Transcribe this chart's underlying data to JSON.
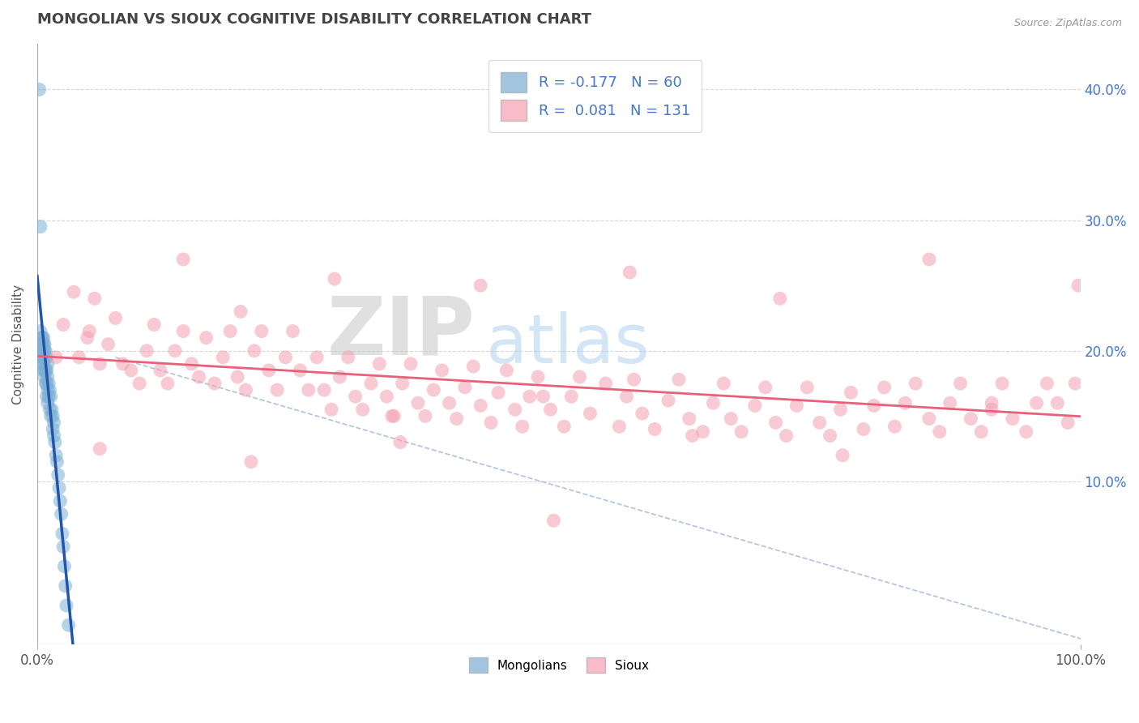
{
  "title": "MONGOLIAN VS SIOUX COGNITIVE DISABILITY CORRELATION CHART",
  "ylabel": "Cognitive Disability",
  "source": "Source: ZipAtlas.com",
  "xlim": [
    0.0,
    1.0
  ],
  "ylim": [
    -0.025,
    0.435
  ],
  "mongolian_color": "#7BAFD4",
  "sioux_color": "#F4A0B0",
  "mongolian_line_color": "#2255AA",
  "sioux_line_color": "#E8607A",
  "dash_line_color": "#AABBDD",
  "legend_R_mongolian": "-0.177",
  "legend_N_mongolian": "60",
  "legend_R_sioux": "0.081",
  "legend_N_sioux": "131",
  "background_color": "#FFFFFF",
  "grid_color": "#CCCCCC",
  "right_axis_color": "#4477CC",
  "mongolian_x": [
    0.002,
    0.003,
    0.003,
    0.003,
    0.004,
    0.004,
    0.004,
    0.004,
    0.005,
    0.005,
    0.005,
    0.005,
    0.005,
    0.006,
    0.006,
    0.006,
    0.006,
    0.006,
    0.006,
    0.007,
    0.007,
    0.007,
    0.007,
    0.007,
    0.008,
    0.008,
    0.008,
    0.008,
    0.009,
    0.009,
    0.009,
    0.009,
    0.01,
    0.01,
    0.01,
    0.01,
    0.011,
    0.011,
    0.012,
    0.012,
    0.013,
    0.013,
    0.014,
    0.015,
    0.015,
    0.016,
    0.016,
    0.017,
    0.018,
    0.019,
    0.02,
    0.021,
    0.022,
    0.023,
    0.024,
    0.025,
    0.026,
    0.027,
    0.028,
    0.03
  ],
  "mongolian_y": [
    0.4,
    0.295,
    0.215,
    0.195,
    0.21,
    0.205,
    0.2,
    0.195,
    0.21,
    0.205,
    0.2,
    0.195,
    0.19,
    0.21,
    0.205,
    0.2,
    0.195,
    0.19,
    0.185,
    0.205,
    0.2,
    0.195,
    0.185,
    0.18,
    0.2,
    0.195,
    0.185,
    0.175,
    0.195,
    0.185,
    0.175,
    0.165,
    0.19,
    0.18,
    0.17,
    0.16,
    0.175,
    0.165,
    0.17,
    0.155,
    0.165,
    0.15,
    0.155,
    0.15,
    0.14,
    0.145,
    0.135,
    0.13,
    0.12,
    0.115,
    0.105,
    0.095,
    0.085,
    0.075,
    0.06,
    0.05,
    0.035,
    0.02,
    0.005,
    -0.01
  ],
  "sioux_x": [
    0.018,
    0.025,
    0.035,
    0.04,
    0.048,
    0.055,
    0.06,
    0.068,
    0.075,
    0.082,
    0.09,
    0.098,
    0.105,
    0.112,
    0.118,
    0.125,
    0.132,
    0.14,
    0.148,
    0.155,
    0.162,
    0.17,
    0.178,
    0.185,
    0.192,
    0.2,
    0.208,
    0.215,
    0.222,
    0.23,
    0.238,
    0.245,
    0.252,
    0.26,
    0.268,
    0.275,
    0.282,
    0.29,
    0.298,
    0.305,
    0.312,
    0.32,
    0.328,
    0.335,
    0.342,
    0.35,
    0.358,
    0.365,
    0.372,
    0.38,
    0.388,
    0.395,
    0.402,
    0.41,
    0.418,
    0.425,
    0.435,
    0.442,
    0.45,
    0.458,
    0.465,
    0.472,
    0.48,
    0.492,
    0.505,
    0.512,
    0.52,
    0.53,
    0.545,
    0.558,
    0.565,
    0.572,
    0.58,
    0.592,
    0.605,
    0.615,
    0.625,
    0.638,
    0.648,
    0.658,
    0.665,
    0.675,
    0.688,
    0.698,
    0.708,
    0.718,
    0.728,
    0.738,
    0.75,
    0.76,
    0.77,
    0.78,
    0.792,
    0.802,
    0.812,
    0.822,
    0.832,
    0.842,
    0.855,
    0.865,
    0.875,
    0.885,
    0.895,
    0.905,
    0.915,
    0.925,
    0.935,
    0.948,
    0.958,
    0.968,
    0.978,
    0.988,
    0.995,
    0.14,
    0.285,
    0.425,
    0.568,
    0.712,
    0.855,
    0.998,
    0.05,
    0.195,
    0.34,
    0.485,
    0.628,
    0.772,
    0.915,
    0.06,
    0.205,
    0.348,
    0.495
  ],
  "sioux_y": [
    0.195,
    0.22,
    0.245,
    0.195,
    0.21,
    0.24,
    0.19,
    0.205,
    0.225,
    0.19,
    0.185,
    0.175,
    0.2,
    0.22,
    0.185,
    0.175,
    0.2,
    0.215,
    0.19,
    0.18,
    0.21,
    0.175,
    0.195,
    0.215,
    0.18,
    0.17,
    0.2,
    0.215,
    0.185,
    0.17,
    0.195,
    0.215,
    0.185,
    0.17,
    0.195,
    0.17,
    0.155,
    0.18,
    0.195,
    0.165,
    0.155,
    0.175,
    0.19,
    0.165,
    0.15,
    0.175,
    0.19,
    0.16,
    0.15,
    0.17,
    0.185,
    0.16,
    0.148,
    0.172,
    0.188,
    0.158,
    0.145,
    0.168,
    0.185,
    0.155,
    0.142,
    0.165,
    0.18,
    0.155,
    0.142,
    0.165,
    0.18,
    0.152,
    0.175,
    0.142,
    0.165,
    0.178,
    0.152,
    0.14,
    0.162,
    0.178,
    0.148,
    0.138,
    0.16,
    0.175,
    0.148,
    0.138,
    0.158,
    0.172,
    0.145,
    0.135,
    0.158,
    0.172,
    0.145,
    0.135,
    0.155,
    0.168,
    0.14,
    0.158,
    0.172,
    0.142,
    0.16,
    0.175,
    0.148,
    0.138,
    0.16,
    0.175,
    0.148,
    0.138,
    0.16,
    0.175,
    0.148,
    0.138,
    0.16,
    0.175,
    0.16,
    0.145,
    0.175,
    0.27,
    0.255,
    0.25,
    0.26,
    0.24,
    0.27,
    0.25,
    0.215,
    0.23,
    0.15,
    0.165,
    0.135,
    0.12,
    0.155,
    0.125,
    0.115,
    0.13,
    0.07
  ]
}
